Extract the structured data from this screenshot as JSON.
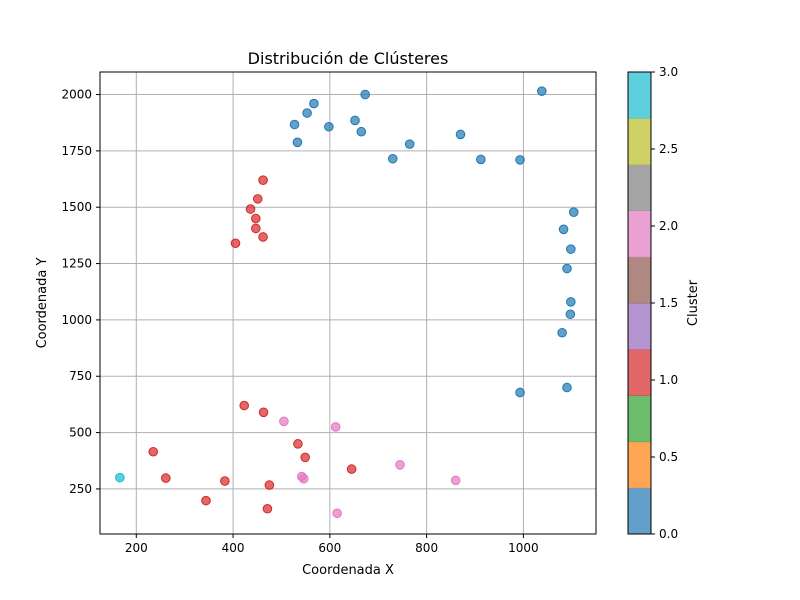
{
  "chart_data": {
    "type": "scatter",
    "title": "Distribución de Clústeres",
    "xlabel": "Coordenada X",
    "ylabel": "Coordenada Y",
    "xlim": [
      125,
      1150
    ],
    "ylim": [
      50,
      2100
    ],
    "xticks": [
      200,
      400,
      600,
      800,
      1000
    ],
    "yticks": [
      250,
      500,
      750,
      1000,
      1250,
      1500,
      1750,
      2000
    ],
    "grid": true,
    "colorbar": {
      "label": "Cluster",
      "range": [
        0,
        3
      ],
      "ticks": [
        "0.0",
        "0.5",
        "1.0",
        "1.5",
        "2.0",
        "2.5",
        "3.0"
      ],
      "colors": [
        "#1f77b4",
        "#ff7f0e",
        "#2ca02c",
        "#d62728",
        "#9467bd",
        "#8c564b",
        "#e377c2",
        "#7f7f7f",
        "#bcbd22",
        "#17becf"
      ]
    },
    "series": [
      {
        "cluster": 0,
        "color": "#1f77b4",
        "points": [
          [
            673,
            2000
          ],
          [
            1038,
            2015
          ],
          [
            567,
            1960
          ],
          [
            553,
            1918
          ],
          [
            652,
            1885
          ],
          [
            527,
            1867
          ],
          [
            598,
            1857
          ],
          [
            665,
            1835
          ],
          [
            870,
            1823
          ],
          [
            533,
            1788
          ],
          [
            765,
            1780
          ],
          [
            730,
            1715
          ],
          [
            912,
            1712
          ],
          [
            993,
            1710
          ],
          [
            1104,
            1478
          ],
          [
            1083,
            1402
          ],
          [
            1098,
            1314
          ],
          [
            1090,
            1228
          ],
          [
            1098,
            1080
          ],
          [
            1097,
            1025
          ],
          [
            1080,
            943
          ],
          [
            1090,
            700
          ],
          [
            993,
            678
          ]
        ]
      },
      {
        "cluster": 1,
        "color": "#d62728",
        "points": [
          [
            462,
            1620
          ],
          [
            451,
            1537
          ],
          [
            436,
            1492
          ],
          [
            447,
            1450
          ],
          [
            447,
            1406
          ],
          [
            462,
            1368
          ],
          [
            405,
            1340
          ],
          [
            423,
            620
          ],
          [
            463,
            590
          ],
          [
            534,
            450
          ],
          [
            235,
            415
          ],
          [
            549,
            390
          ],
          [
            645,
            338
          ],
          [
            261,
            298
          ],
          [
            383,
            285
          ],
          [
            475,
            267
          ],
          [
            344,
            198
          ],
          [
            471,
            162
          ]
        ]
      },
      {
        "cluster": 2,
        "color": "#e377c2",
        "points": [
          [
            505,
            550
          ],
          [
            612,
            525
          ],
          [
            745,
            357
          ],
          [
            542,
            305
          ],
          [
            546,
            295
          ],
          [
            860,
            288
          ],
          [
            615,
            142
          ]
        ]
      },
      {
        "cluster": 3,
        "color": "#17becf",
        "points": [
          [
            166,
            300
          ]
        ]
      }
    ]
  }
}
